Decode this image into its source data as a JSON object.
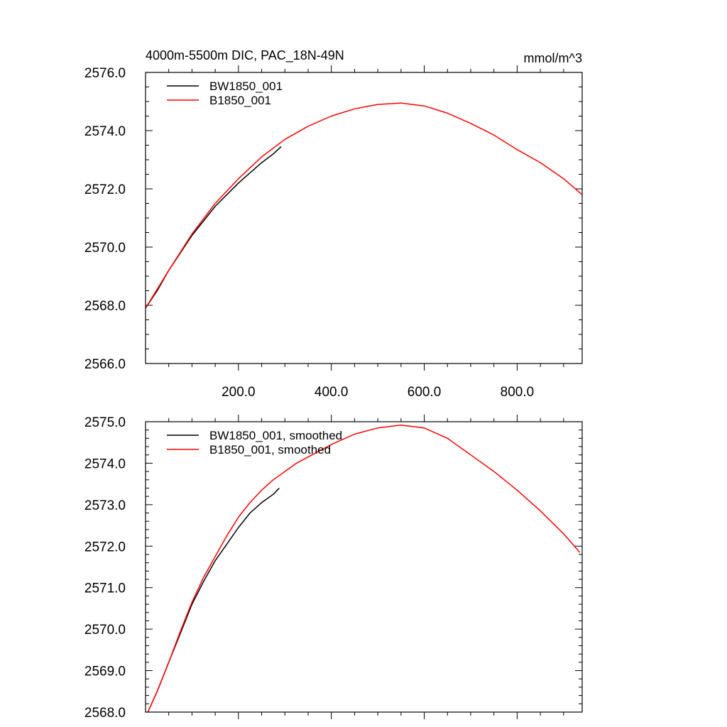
{
  "chart_data": [
    {
      "type": "line",
      "title": "4000m-5500m DIC, PAC_18N-49N",
      "units": "mmol/m^3",
      "xlim": [
        0,
        940
      ],
      "ylim": [
        2566.0,
        2576.0
      ],
      "xticks": [
        200,
        400,
        600,
        800
      ],
      "xtick_labels": [
        "200.0",
        "400.0",
        "600.0",
        "800.0"
      ],
      "yticks": [
        2566,
        2568,
        2570,
        2572,
        2574,
        2576
      ],
      "ytick_labels": [
        "2566.0",
        "2568.0",
        "2570.0",
        "2572.0",
        "2574.0",
        "2576.0"
      ],
      "legend_position": "top-left",
      "series": [
        {
          "name": "BW1850_001",
          "color": "#000000",
          "x": [
            0,
            25,
            50,
            75,
            100,
            125,
            150,
            175,
            200,
            225,
            250,
            275,
            292
          ],
          "y": [
            2567.9,
            2568.5,
            2569.2,
            2569.8,
            2570.4,
            2570.9,
            2571.4,
            2571.8,
            2572.2,
            2572.55,
            2572.9,
            2573.2,
            2573.45
          ]
        },
        {
          "name": "B1850_001",
          "color": "#ff0000",
          "x": [
            0,
            50,
            100,
            150,
            200,
            250,
            300,
            350,
            400,
            450,
            500,
            550,
            600,
            650,
            700,
            750,
            800,
            850,
            900,
            940
          ],
          "y": [
            2567.9,
            2569.2,
            2570.45,
            2571.5,
            2572.35,
            2573.1,
            2573.7,
            2574.15,
            2574.5,
            2574.75,
            2574.9,
            2574.95,
            2574.85,
            2574.6,
            2574.25,
            2573.85,
            2573.35,
            2572.9,
            2572.35,
            2571.8
          ]
        }
      ]
    },
    {
      "type": "line",
      "xlim": [
        0,
        940
      ],
      "ylim": [
        2568.0,
        2575.0
      ],
      "xticks": [
        200,
        400,
        600,
        800
      ],
      "yticks": [
        2568,
        2569,
        2570,
        2571,
        2572,
        2573,
        2574,
        2575
      ],
      "ytick_labels": [
        "2568.0",
        "2569.0",
        "2570.0",
        "2571.0",
        "2572.0",
        "2573.0",
        "2574.0",
        "2575.0"
      ],
      "legend_position": "top-left",
      "series": [
        {
          "name": "BW1850_001, smoothed",
          "color": "#000000",
          "x": [
            5,
            25,
            50,
            75,
            100,
            125,
            150,
            175,
            200,
            225,
            250,
            275,
            288
          ],
          "y": [
            2568.0,
            2568.5,
            2569.2,
            2569.9,
            2570.6,
            2571.15,
            2571.65,
            2572.05,
            2572.45,
            2572.8,
            2573.05,
            2573.25,
            2573.4
          ]
        },
        {
          "name": "B1850_001, smoothed",
          "color": "#ff0000",
          "x": [
            5,
            25,
            50,
            75,
            100,
            125,
            150,
            175,
            200,
            225,
            250,
            275,
            300,
            325,
            350,
            400,
            450,
            500,
            550,
            600,
            650,
            700,
            750,
            800,
            850,
            900,
            935
          ],
          "y": [
            2568.0,
            2568.5,
            2569.2,
            2569.95,
            2570.65,
            2571.25,
            2571.75,
            2572.25,
            2572.7,
            2573.05,
            2573.35,
            2573.6,
            2573.8,
            2574.0,
            2574.15,
            2574.45,
            2574.7,
            2574.85,
            2574.92,
            2574.85,
            2574.6,
            2574.2,
            2573.8,
            2573.35,
            2572.85,
            2572.3,
            2571.85
          ]
        }
      ]
    }
  ]
}
